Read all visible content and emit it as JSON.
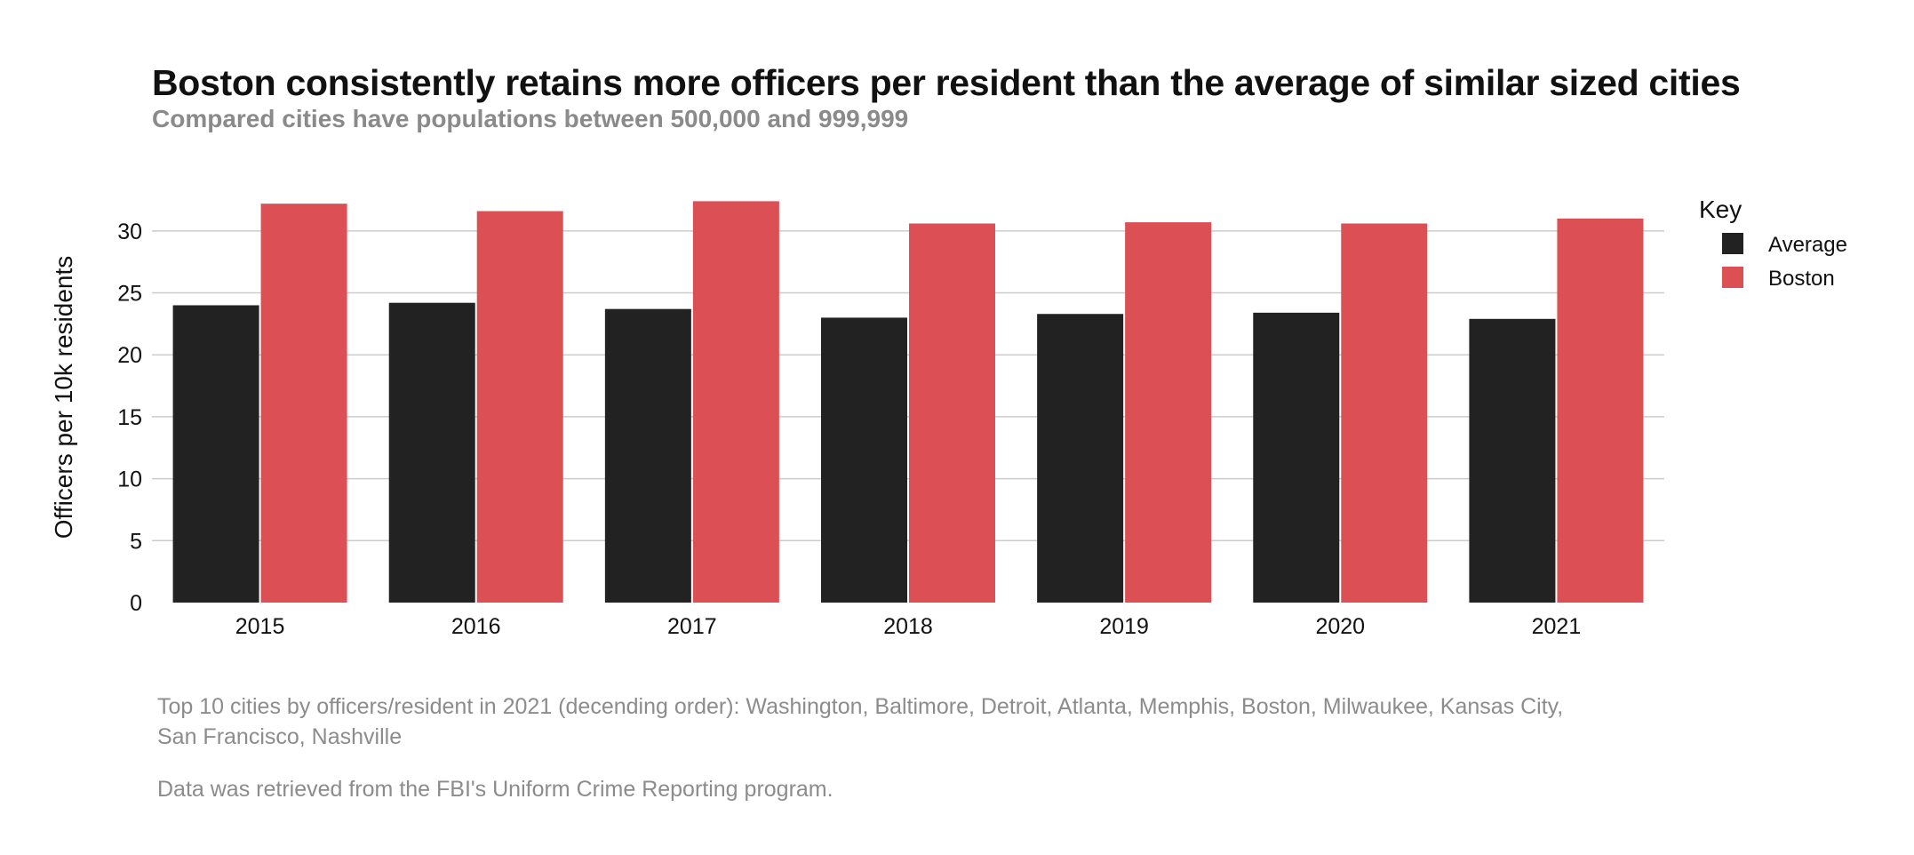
{
  "title": "Boston consistently retains more officers per resident than the average of similar sized cities",
  "subtitle": "Compared cities have populations between 500,000 and 999,999",
  "notes": {
    "top10": "Top 10 cities by officers/resident in 2021 (decending order): Washington, Baltimore, Detroit, Atlanta, Memphis, Boston, Milwaukee, Kansas City, San Francisco, Nashville",
    "source": "Data was retrieved from the FBI's Uniform Crime Reporting program."
  },
  "colors": {
    "average": "#222222",
    "boston": "#dc4f55",
    "grid": "#cccccc"
  },
  "chart_data": {
    "type": "bar",
    "categories": [
      "2015",
      "2016",
      "2017",
      "2018",
      "2019",
      "2020",
      "2021"
    ],
    "series": [
      {
        "name": "Average",
        "values": [
          24.0,
          24.2,
          23.7,
          23.0,
          23.3,
          23.4,
          22.9
        ]
      },
      {
        "name": "Boston",
        "values": [
          32.2,
          31.6,
          32.4,
          30.6,
          30.7,
          30.6,
          31.0
        ]
      }
    ],
    "xlabel": "",
    "ylabel": "Officers per 10k residents",
    "ylim": [
      0,
      32.5
    ],
    "yticks": [
      0,
      5,
      10,
      15,
      20,
      25,
      30
    ],
    "grid": true,
    "legend": {
      "title": "Key",
      "position": "right"
    }
  }
}
